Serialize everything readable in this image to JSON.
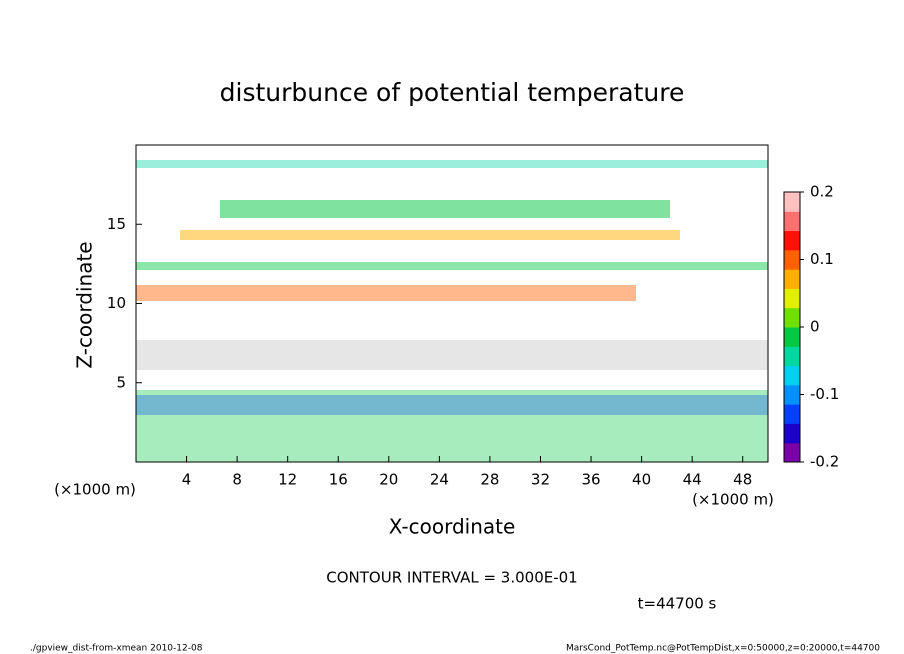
{
  "chart_data": {
    "type": "contour",
    "title": "disturbunce of potential temperature",
    "xlabel": "X-coordinate",
    "ylabel": "Z-coordinate",
    "x_unit_left": "(×1000 m)",
    "x_unit_right": "(×1000 m)",
    "xlim": [
      0,
      50
    ],
    "xticks": [
      4,
      8,
      12,
      16,
      20,
      24,
      28,
      32,
      36,
      40,
      44,
      48
    ],
    "ylim": [
      0,
      20
    ],
    "yticks": [
      5,
      10,
      15
    ],
    "clim": [
      -0.2,
      0.2
    ],
    "cticks": [
      -0.2,
      -0.1,
      0,
      0.1,
      0.2
    ],
    "colormap": [
      "#7a00a8",
      "#1a00c8",
      "#0040ff",
      "#0090ff",
      "#00d0f0",
      "#00d8a0",
      "#00c840",
      "#70e000",
      "#e0f000",
      "#ffb000",
      "#ff6000",
      "#ff1000",
      "#ff7070",
      "#ffc0c0"
    ],
    "contour_interval": "CONTOUR INTERVAL = 3.000E-01",
    "time_label": "t=44700 s",
    "footer_left": "./gpview_dist-from-xmean  2010-12-08",
    "footer_right": "MarsCond_PotTemp.nc@PotTempDist,x=0:50000,z=0:20000,t=44700"
  }
}
